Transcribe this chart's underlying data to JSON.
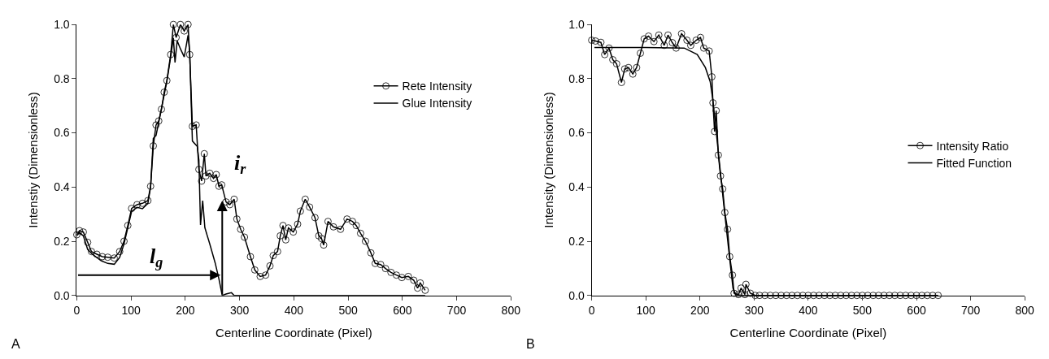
{
  "chart_data": [
    {
      "type": "line",
      "xlabel": "Centerline Coordinate (Pixel)",
      "ylabel": "Intenstiy (Dimensionless)",
      "xlim": [
        0,
        800
      ],
      "xticks": [
        0,
        100,
        200,
        300,
        400,
        500,
        600,
        700,
        800
      ],
      "ylim": [
        0,
        1
      ],
      "yticks": [
        {
          "value": 0,
          "label": "0.0"
        },
        {
          "value": 0.2,
          "label": "0.2"
        },
        {
          "value": 0.4,
          "label": "0.4"
        },
        {
          "value": 0.6,
          "label": "0.6"
        },
        {
          "value": 0.8,
          "label": "0.8"
        },
        {
          "value": 1,
          "label": "1.0"
        }
      ],
      "legend": "top right",
      "annotations": [
        "A",
        {
          "text": "l$_{g}$",
          "x": 265,
          "y": 0.075
        },
        {
          "text": "i$_{r}$",
          "x": 268,
          "y": 0.35
        }
      ],
      "series": [
        {
          "name": "Rete Intensity",
          "color": "#000000",
          "marker": "circle",
          "line_style": "solid",
          "x": [
            0,
            5,
            12,
            20,
            27,
            37,
            47,
            57,
            69,
            79,
            87,
            94,
            101,
            111,
            121,
            131,
            136,
            141,
            146,
            151,
            156,
            161,
            166,
            173,
            178,
            183,
            191,
            198,
            205,
            208,
            213,
            220,
            225,
            230,
            235,
            238,
            245,
            252,
            257,
            262,
            267,
            275,
            282,
            290,
            295,
            302,
            309,
            320,
            328,
            338,
            348,
            356,
            362,
            370,
            375,
            380,
            385,
            390,
            399,
            407,
            412,
            421,
            429,
            439,
            446,
            451,
            455,
            463,
            473,
            486,
            498,
            508,
            515,
            523,
            532,
            542,
            550,
            560,
            569,
            579,
            589,
            599,
            611,
            621,
            628,
            633,
            642
          ],
          "values": [
            0.224,
            0.239,
            0.234,
            0.196,
            0.162,
            0.152,
            0.143,
            0.141,
            0.138,
            0.162,
            0.2,
            0.258,
            0.321,
            0.335,
            0.34,
            0.35,
            0.403,
            0.552,
            0.629,
            0.644,
            0.687,
            0.75,
            0.793,
            0.889,
            1.0,
            0.952,
            1.0,
            0.976,
            1.0,
            0.889,
            0.624,
            0.629,
            0.465,
            0.422,
            0.523,
            0.441,
            0.451,
            0.432,
            0.446,
            0.403,
            0.408,
            0.345,
            0.335,
            0.355,
            0.282,
            0.244,
            0.215,
            0.143,
            0.094,
            0.07,
            0.075,
            0.109,
            0.147,
            0.162,
            0.22,
            0.258,
            0.205,
            0.249,
            0.234,
            0.263,
            0.311,
            0.355,
            0.326,
            0.287,
            0.22,
            0.21,
            0.186,
            0.273,
            0.253,
            0.244,
            0.282,
            0.273,
            0.258,
            0.229,
            0.2,
            0.157,
            0.118,
            0.114,
            0.099,
            0.085,
            0.075,
            0.066,
            0.07,
            0.056,
            0.027,
            0.046,
            0.019
          ]
        },
        {
          "name": "Glue Intensity",
          "color": "#000000",
          "marker": "none",
          "line_style": "solid",
          "x": [
            0,
            5,
            12,
            20,
            30,
            45,
            57,
            69,
            79,
            87,
            94,
            101,
            111,
            121,
            131,
            136,
            141,
            146,
            151,
            161,
            166,
            173,
            178,
            181,
            185,
            191,
            198,
            205,
            208,
            213,
            222,
            225,
            228,
            232,
            236,
            245,
            255,
            262,
            268,
            275,
            285,
            290,
            300,
            400,
            500,
            642
          ],
          "values": [
            0.22,
            0.232,
            0.22,
            0.17,
            0.15,
            0.128,
            0.118,
            0.115,
            0.14,
            0.19,
            0.25,
            0.31,
            0.325,
            0.32,
            0.34,
            0.4,
            0.58,
            0.59,
            0.64,
            0.74,
            0.79,
            0.88,
            0.95,
            0.86,
            0.94,
            0.91,
            0.88,
            0.96,
            0.9,
            0.57,
            0.55,
            0.5,
            0.26,
            0.35,
            0.25,
            0.19,
            0.12,
            0.06,
            0.0,
            0.005,
            0.01,
            0.0,
            0.0,
            0.0,
            0.0,
            0.0
          ]
        }
      ]
    },
    {
      "type": "line",
      "xlabel": "Centerline Coordinate (Pixel)",
      "ylabel": "Intensity (Dimensionless)",
      "xlim": [
        0,
        800
      ],
      "xticks": [
        0,
        100,
        200,
        300,
        400,
        500,
        600,
        700,
        800
      ],
      "ylim": [
        0,
        1
      ],
      "yticks": [
        {
          "value": 0,
          "label": "0.0"
        },
        {
          "value": 0.2,
          "label": "0.2"
        },
        {
          "value": 0.4,
          "label": "0.4"
        },
        {
          "value": 0.6,
          "label": "0.6"
        },
        {
          "value": 0.8,
          "label": "0.8"
        },
        {
          "value": 1,
          "label": "1.0"
        }
      ],
      "legend": "right",
      "annotations": [
        "B"
      ],
      "series": [
        {
          "name": "Intensity Ratio",
          "color": "#000000",
          "marker": "circle",
          "line_style": "solid",
          "x": [
            0,
            7,
            17,
            24,
            32,
            39,
            46,
            55,
            61,
            68,
            76,
            83,
            90,
            97,
            105,
            115,
            124,
            134,
            141,
            149,
            156,
            166,
            176,
            183,
            193,
            201,
            207,
            217,
            222,
            224,
            227,
            230,
            234,
            238,
            242,
            246,
            251,
            255,
            260,
            263,
            271,
            276,
            283,
            285,
            293,
            302,
            310,
            320,
            330,
            340,
            350,
            360,
            370,
            380,
            390,
            400,
            410,
            420,
            430,
            440,
            450,
            460,
            470,
            480,
            490,
            500,
            510,
            520,
            530,
            540,
            550,
            560,
            570,
            580,
            590,
            600,
            610,
            620,
            630,
            640
          ],
          "values": [
            0.942,
            0.939,
            0.934,
            0.889,
            0.913,
            0.87,
            0.855,
            0.786,
            0.836,
            0.841,
            0.817,
            0.841,
            0.894,
            0.947,
            0.957,
            0.937,
            0.961,
            0.923,
            0.961,
            0.933,
            0.913,
            0.966,
            0.942,
            0.923,
            0.942,
            0.952,
            0.913,
            0.902,
            0.807,
            0.711,
            0.605,
            0.682,
            0.518,
            0.441,
            0.393,
            0.306,
            0.244,
            0.143,
            0.075,
            0.008,
            0.003,
            0.027,
            0.003,
            0.041,
            0.008,
            0.0,
            0.0,
            0.0,
            0.0,
            0.0,
            0.0,
            0.0,
            0.0,
            0.0,
            0.0,
            0.0,
            0.0,
            0.0,
            0.0,
            0.0,
            0.0,
            0.0,
            0.0,
            0.0,
            0.0,
            0.0,
            0.0,
            0.0,
            0.0,
            0.0,
            0.0,
            0.0,
            0.0,
            0.0,
            0.0,
            0.0,
            0.0,
            0.0,
            0.0,
            0.0
          ]
        },
        {
          "name": "Fitted Function",
          "color": "#000000",
          "marker": "none",
          "line_style": "solid",
          "x": [
            5,
            100,
            171,
            195,
            210,
            219,
            224,
            234,
            244,
            254,
            261,
            266,
            280,
            400,
            640
          ],
          "values": [
            0.915,
            0.915,
            0.913,
            0.889,
            0.841,
            0.788,
            0.72,
            0.528,
            0.335,
            0.152,
            0.027,
            0.003,
            0.0,
            0.0,
            0.0
          ]
        }
      ]
    }
  ]
}
